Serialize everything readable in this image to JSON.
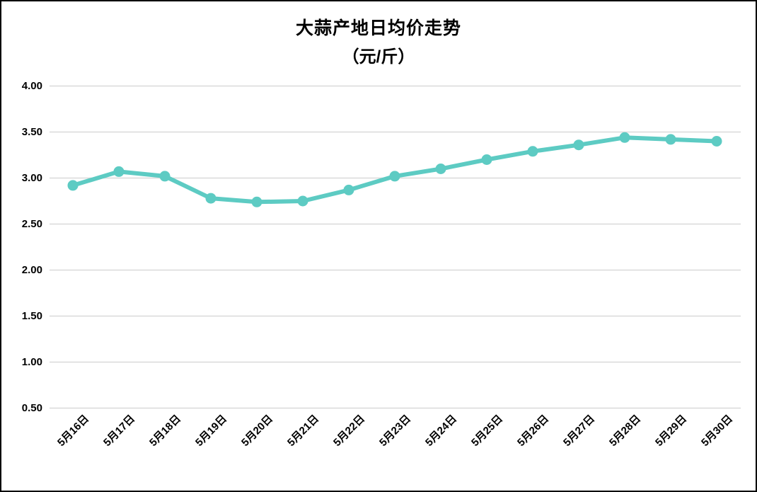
{
  "title": "大蒜产地日均价走势",
  "subtitle": "（元/斤）",
  "colors": {
    "line": "#5dcbc3",
    "gridline": "#d9d9d9",
    "text": "#000000",
    "background": "#ffffff",
    "border": "#000000"
  },
  "chart_data": {
    "type": "line",
    "title": "大蒜产地日均价走势",
    "subtitle": "（元/斤）",
    "unit": "元/斤",
    "categories": [
      "5月16日",
      "5月17日",
      "5月18日",
      "5月19日",
      "5月20日",
      "5月21日",
      "5月22日",
      "5月23日",
      "5月24日",
      "5月25日",
      "5月26日",
      "5月27日",
      "5月28日",
      "5月29日",
      "5月30日"
    ],
    "values": [
      2.92,
      3.07,
      3.02,
      2.78,
      2.74,
      2.75,
      2.87,
      3.02,
      3.1,
      3.2,
      3.29,
      3.36,
      3.44,
      3.42,
      3.4
    ],
    "xlabel": "",
    "ylabel": "",
    "ylim": [
      0.5,
      4.0
    ],
    "ytick_step": 0.5,
    "ytick_labels": [
      "4.00",
      "3.50",
      "3.00",
      "2.50",
      "2.00",
      "1.50",
      "1.00",
      "0.50"
    ],
    "grid": "horizontal",
    "legend_position": "none",
    "marker": "circle",
    "line_color": "#5dcbc3"
  }
}
